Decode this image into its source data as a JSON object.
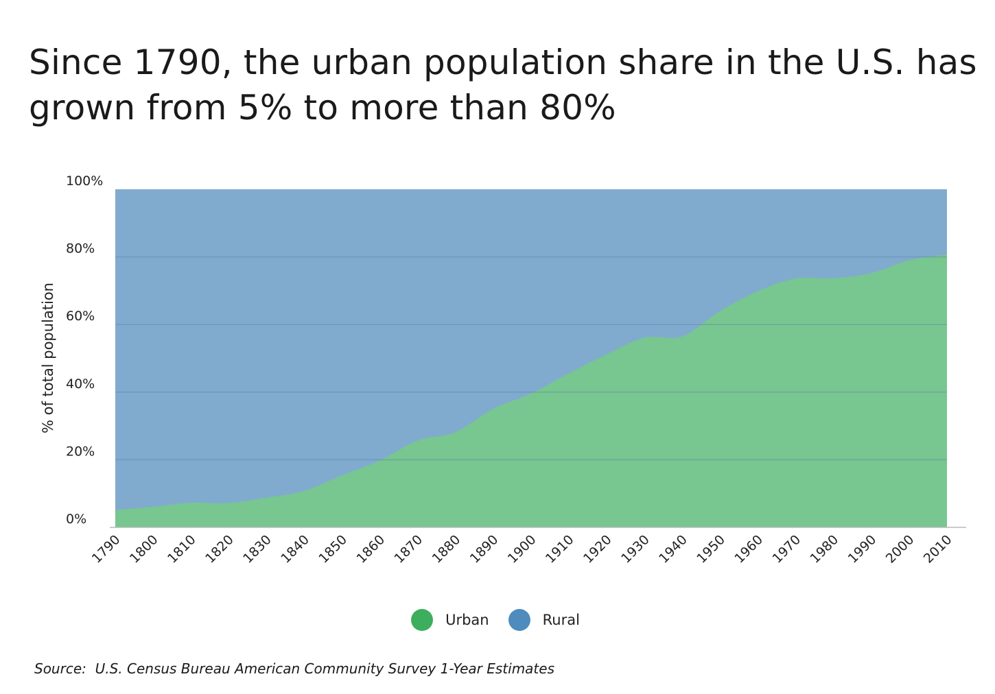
{
  "title": "Since 1790, the urban population share in the U.S. has grown from 5% to more than 80%",
  "source": "Source:  U.S. Census Bureau American Community Survey 1-Year Estimates",
  "chart_data": {
    "type": "area",
    "stacked": true,
    "xlabel": "",
    "ylabel": "% of total population",
    "ylim": [
      0,
      100
    ],
    "yticks": [
      "0%",
      "20%",
      "40%",
      "60%",
      "80%",
      "100%"
    ],
    "ytick_values": [
      0,
      20,
      40,
      60,
      80,
      100
    ],
    "x": [
      1790,
      1800,
      1810,
      1820,
      1830,
      1840,
      1850,
      1860,
      1870,
      1880,
      1890,
      1900,
      1910,
      1920,
      1930,
      1940,
      1950,
      1960,
      1970,
      1980,
      1990,
      2000,
      2010
    ],
    "series": [
      {
        "name": "Urban",
        "color": "#3dae5e",
        "fill": "#78c690",
        "values": [
          5.1,
          6.1,
          7.3,
          7.2,
          8.8,
          10.8,
          15.4,
          19.8,
          25.7,
          28.2,
          35.1,
          39.6,
          45.6,
          51.2,
          56.1,
          56.5,
          64.0,
          69.9,
          73.6,
          73.7,
          75.2,
          79.0,
          80.7
        ]
      },
      {
        "name": "Rural",
        "color": "#4f8bbd",
        "fill": "#80abcf",
        "values": [
          94.9,
          93.9,
          92.7,
          92.8,
          91.2,
          89.2,
          84.6,
          80.2,
          74.3,
          71.8,
          64.9,
          60.4,
          54.4,
          48.8,
          43.9,
          43.5,
          36.0,
          30.1,
          26.4,
          26.3,
          24.8,
          21.0,
          19.3
        ]
      }
    ],
    "legend": [
      {
        "label": "Urban",
        "color": "#3dae5e"
      },
      {
        "label": "Rural",
        "color": "#4f8bbd"
      }
    ],
    "legend_position": "bottom-center",
    "grid": true
  }
}
